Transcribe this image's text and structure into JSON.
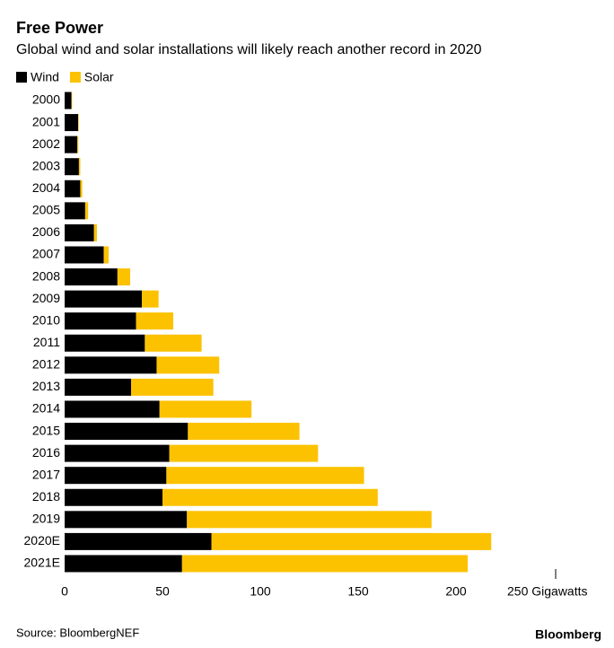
{
  "chart_data": {
    "type": "stacked-barh",
    "title": "Free Power",
    "subtitle": "Global wind and solar installations will likely reach another record in 2020",
    "categories": [
      "2000",
      "2001",
      "2002",
      "2003",
      "2004",
      "2005",
      "2006",
      "2007",
      "2008",
      "2009",
      "2010",
      "2011",
      "2012",
      "2013",
      "2014",
      "2015",
      "2016",
      "2017",
      "2018",
      "2019",
      "2020E",
      "2021E"
    ],
    "series": [
      {
        "name": "Wind",
        "color": "#000000",
        "values": [
          3.5,
          6.9,
          6.5,
          7.3,
          8,
          10.5,
          15,
          20,
          27,
          39.5,
          36.5,
          41,
          47,
          34,
          48.5,
          63,
          53.5,
          52,
          50,
          62.5,
          75,
          60
        ]
      },
      {
        "name": "Solar",
        "color": "#fcc200",
        "values": [
          0.3,
          0.3,
          0.5,
          0.7,
          1,
          1.5,
          1.5,
          2.5,
          6.5,
          8.5,
          19,
          29,
          32,
          42,
          47,
          57,
          76,
          101,
          110,
          125,
          143,
          146
        ]
      }
    ],
    "xlim": [
      0,
      250
    ],
    "xticks": [
      0,
      50,
      100,
      150,
      200,
      {
        "value": 250,
        "label": "250 Gigawatts"
      }
    ],
    "source": "Source: BloombergNEF",
    "brand": "Bloomberg"
  }
}
